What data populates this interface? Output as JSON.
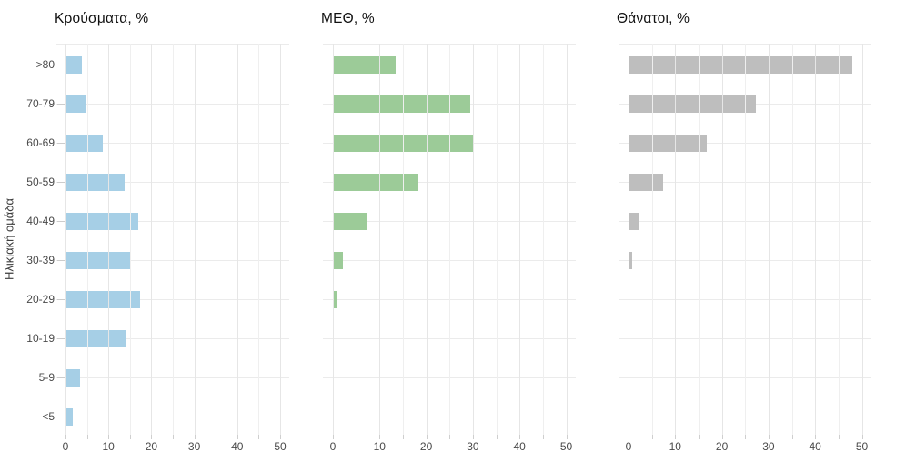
{
  "chart_data": {
    "type": "bar",
    "orientation": "horizontal",
    "title": "",
    "ylabel": "Ηλικιακή ομάδα",
    "xlabel": "",
    "categories": [
      ">80",
      "70-79",
      "60-69",
      "50-59",
      "40-49",
      "30-39",
      "20-29",
      "10-19",
      "5-9",
      "<5"
    ],
    "xlim": [
      0,
      50
    ],
    "x_ticks": [
      0,
      10,
      20,
      30,
      40,
      50
    ],
    "x_minor_step": 5,
    "grid": "on",
    "legend": "none",
    "panels": [
      {
        "title": "Κρούσματα, %",
        "color": "#A6CFE6",
        "values": [
          3.8,
          4.9,
          8.6,
          13.8,
          16.9,
          15.0,
          17.3,
          14.3,
          3.3,
          1.8
        ]
      },
      {
        "title": "ΜΕΘ, %",
        "color": "#9CCB98",
        "values": [
          13.5,
          29.4,
          30.0,
          18.1,
          7.5,
          2.1,
          0.8,
          0.25,
          0.1,
          0.25
        ]
      },
      {
        "title": "Θάνατοι, %",
        "color": "#BEBEBE",
        "values": [
          48.0,
          27.3,
          16.8,
          7.4,
          2.3,
          0.8,
          0.2,
          0.15,
          0.0,
          0.1
        ]
      }
    ],
    "colors": {
      "cases_bar": "#A6CFE6",
      "icu_bar": "#9CCB98",
      "deaths_bar": "#BEBEBE",
      "grid_major": "#E6E6E6",
      "grid_minor": "#EFEFEF",
      "axis_text": "#4A4A4A",
      "background": "#FFFFFF"
    }
  }
}
